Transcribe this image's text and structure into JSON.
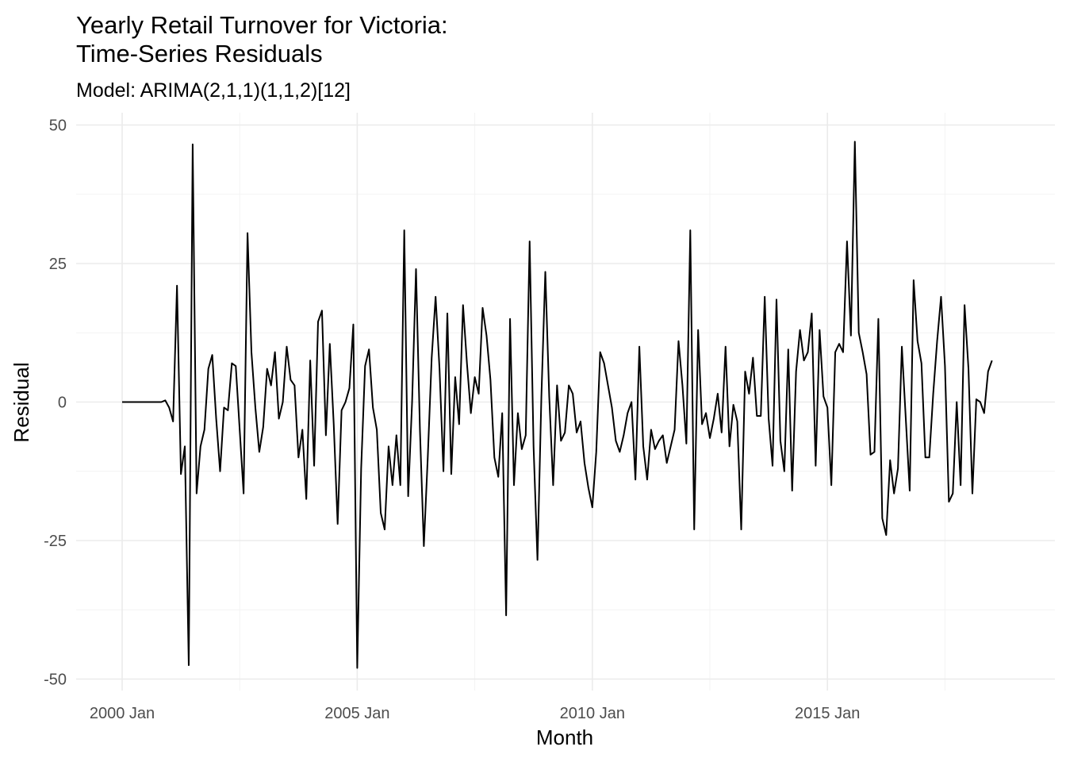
{
  "chart_data": {
    "type": "line",
    "title_line1": "Yearly Retail Turnover for Victoria:",
    "title_line2": "Time-Series Residuals",
    "subtitle": "Model: ARIMA(2,1,1)(1,1,2)[12]",
    "xlabel": "Month",
    "ylabel": "Residual",
    "x_start": "2000 Jan",
    "x_frequency": "monthly",
    "x_ticks": [
      "2000 Jan",
      "2005 Jan",
      "2010 Jan",
      "2015 Jan"
    ],
    "y_ticks": [
      50,
      25,
      0,
      -25,
      -50
    ],
    "ylim": [
      -52,
      51
    ],
    "grid": true,
    "series": [
      {
        "values": [
          0,
          0,
          0,
          0,
          0,
          0,
          0,
          0,
          0,
          0,
          0,
          0.3,
          -1,
          -3.5,
          21,
          -13,
          -8,
          -47.5,
          46.5,
          -16.5,
          -8,
          -5,
          6,
          8.5,
          -3,
          -12.5,
          -1,
          -1.5,
          7,
          6.5,
          -5,
          -16.5,
          30.5,
          9,
          -1,
          -9,
          -4.5,
          6,
          3,
          9,
          -3,
          0,
          10,
          4,
          3,
          -10,
          -5,
          -17.5,
          7.5,
          -11.5,
          14.5,
          16.5,
          -6,
          10.5,
          -4,
          -22,
          -1.5,
          0,
          2.5,
          14,
          -48,
          -12,
          6.5,
          9.5,
          -1,
          -5,
          -20,
          -23,
          -8,
          -15,
          -6,
          -15,
          31,
          -17,
          0,
          24,
          -5,
          -26,
          -10,
          8,
          19,
          6,
          -12.5,
          16,
          -13,
          4.5,
          -4,
          17.5,
          7,
          -2,
          4.5,
          1.5,
          17,
          12,
          4,
          -10,
          -13.5,
          -2,
          -38.5,
          15,
          -15,
          -2,
          -8.5,
          -6,
          29,
          -8,
          -28.5,
          1,
          23.5,
          1,
          -15,
          3,
          -7,
          -5.5,
          3,
          1.5,
          -5.5,
          -3.5,
          -11,
          -15.5,
          -19,
          -9,
          9,
          7,
          3,
          -1,
          -7,
          -9,
          -6,
          -2,
          0,
          -14,
          10,
          -8,
          -14,
          -5,
          -8.5,
          -7,
          -6,
          -11,
          -8,
          -5,
          11,
          3,
          -7.5,
          31,
          -23,
          13,
          -4,
          -2,
          -6.5,
          -3,
          1.5,
          -5.5,
          10,
          -8,
          -0.5,
          -3.5,
          -23,
          5.5,
          1.5,
          8,
          -2.5,
          -2.5,
          19,
          -3,
          -11.5,
          18.5,
          -7,
          -12.5,
          9.5,
          -16,
          5.5,
          13,
          7.5,
          9,
          16,
          -11.5,
          13,
          1,
          -1,
          -15,
          9,
          10.5,
          9,
          29,
          12,
          47,
          12.5,
          9,
          5,
          -9.5,
          -9,
          15,
          -21,
          -24,
          -10.5,
          -16.5,
          -12,
          10,
          -3,
          -16,
          22,
          11,
          7,
          -10,
          -10,
          1.5,
          11,
          19,
          6.5,
          -18,
          -16.5,
          0,
          -15,
          17.5,
          6,
          -16.5,
          0.5,
          0,
          -2,
          5.5,
          7.5
        ]
      }
    ]
  }
}
